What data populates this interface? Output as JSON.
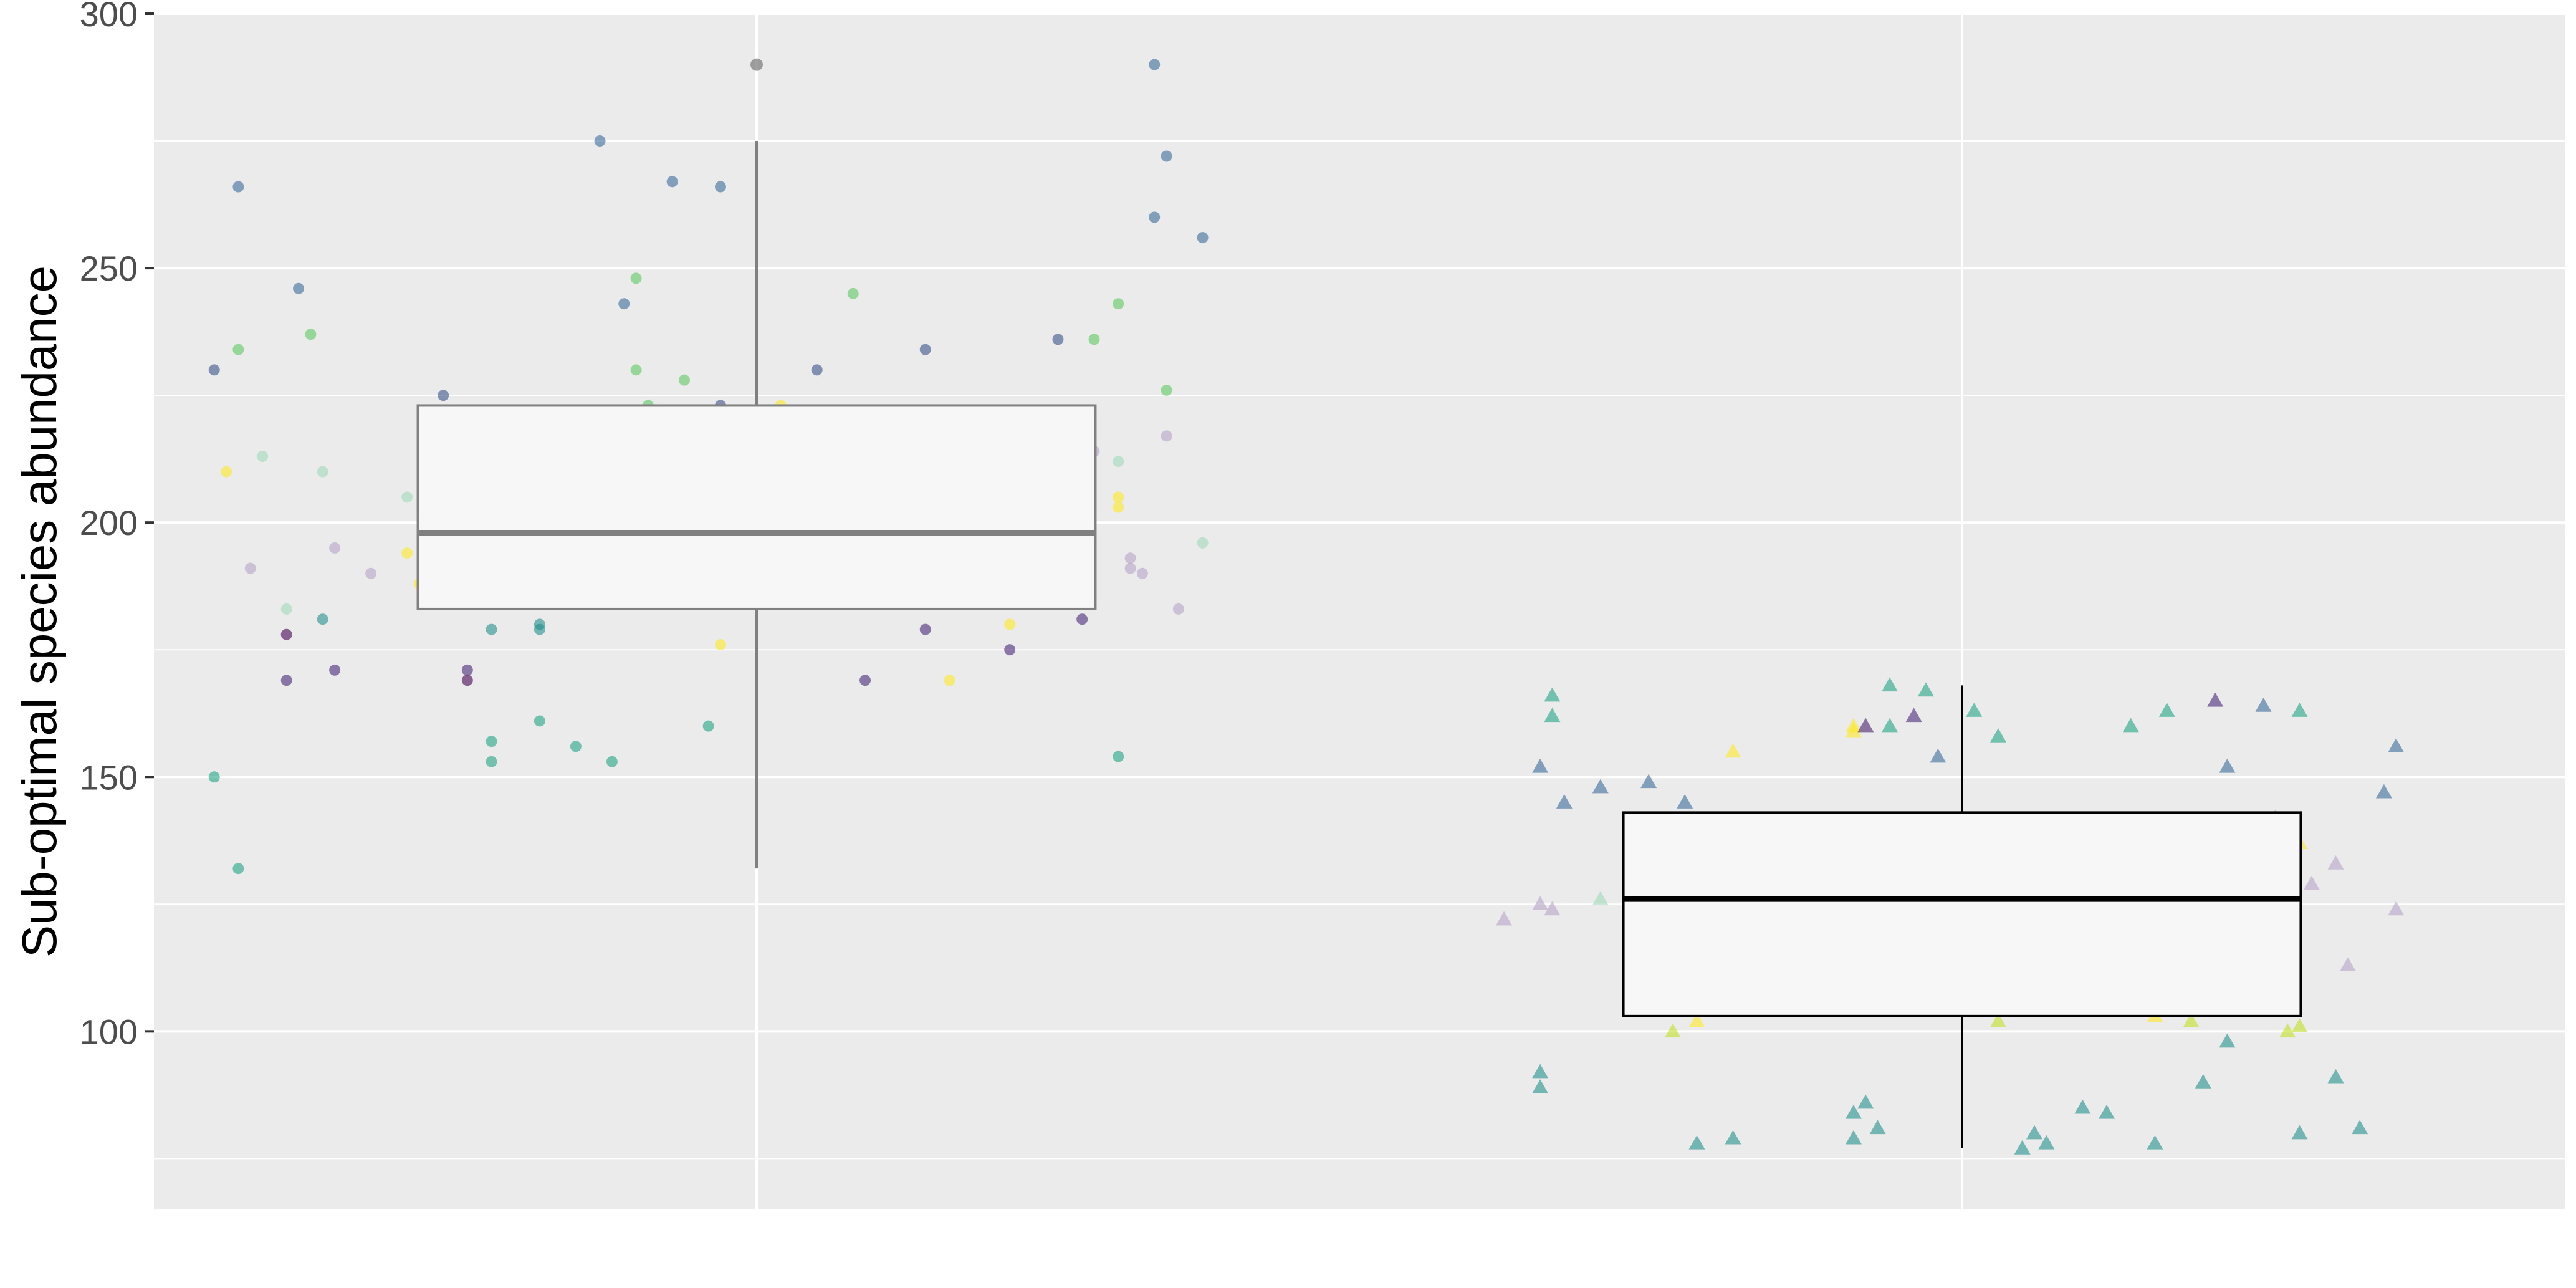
{
  "chart_data": {
    "type": "box",
    "title": "",
    "xlabel": "",
    "ylabel": "Sub-optimal species abundance",
    "ylim": [
      65,
      300
    ],
    "yticks": [
      100,
      150,
      200,
      250,
      300
    ],
    "grid": true,
    "legend": "none",
    "panel_color": "#ebebeb",
    "grid_color": "#ffffff",
    "groups": [
      {
        "id": "group-1",
        "shape": "circle",
        "box": {
          "q1": 183,
          "median": 198,
          "q3": 223,
          "whisker_low": 132,
          "whisker_high": 275
        },
        "outliers": [
          290
        ],
        "box_line_color": "#808080",
        "points": [
          [
            -0.45,
            150,
            "#21a585"
          ],
          [
            -0.43,
            132,
            "#21a585"
          ],
          [
            -0.43,
            266,
            "#3b6b9b"
          ],
          [
            -0.38,
            246,
            "#3b6b9b"
          ],
          [
            -0.37,
            237,
            "#5ec962"
          ],
          [
            -0.45,
            230,
            "#3b528b"
          ],
          [
            -0.43,
            234,
            "#5ec962"
          ],
          [
            -0.44,
            210,
            "#fde725"
          ],
          [
            -0.41,
            213,
            "#a0dab9"
          ],
          [
            -0.36,
            210,
            "#a0dab9"
          ],
          [
            -0.42,
            191,
            "#b8a3c9"
          ],
          [
            -0.35,
            195,
            "#b8a3c9"
          ],
          [
            -0.39,
            183,
            "#a0dab9"
          ],
          [
            -0.36,
            181,
            "#21918c"
          ],
          [
            -0.39,
            178,
            "#440154"
          ],
          [
            -0.39,
            169,
            "#482878"
          ],
          [
            -0.35,
            171,
            "#482878"
          ],
          [
            -0.29,
            205,
            "#a0dab9"
          ],
          [
            -0.25,
            203,
            "#a0dab9"
          ],
          [
            -0.32,
            190,
            "#b8a3c9"
          ],
          [
            -0.27,
            186,
            "#b8a3c9"
          ],
          [
            -0.29,
            194,
            "#fde725"
          ],
          [
            -0.28,
            188,
            "#fde725"
          ],
          [
            -0.24,
            201,
            "#b8a3c9"
          ],
          [
            -0.26,
            198,
            "#b8a3c9"
          ],
          [
            -0.22,
            179,
            "#21918c"
          ],
          [
            -0.18,
            179,
            "#21918c"
          ],
          [
            -0.18,
            180,
            "#21918c"
          ],
          [
            -0.24,
            169,
            "#440154"
          ],
          [
            -0.24,
            171,
            "#482878"
          ],
          [
            -0.25,
            184,
            "#b8a3c9"
          ],
          [
            -0.26,
            188,
            "#fde725"
          ],
          [
            -0.18,
            161,
            "#21a585"
          ],
          [
            -0.22,
            157,
            "#21a585"
          ],
          [
            -0.22,
            153,
            "#21a585"
          ],
          [
            -0.15,
            156,
            "#21a585"
          ],
          [
            -0.12,
            153,
            "#21a585"
          ],
          [
            -0.26,
            225,
            "#3b528b"
          ],
          [
            -0.11,
            243,
            "#3b6b9b"
          ],
          [
            -0.13,
            275,
            "#3b6b9b"
          ],
          [
            -0.07,
            267,
            "#3b6b9b"
          ],
          [
            -0.03,
            266,
            "#3b6b9b"
          ],
          [
            -0.1,
            248,
            "#5ec962"
          ],
          [
            -0.1,
            230,
            "#5ec962"
          ],
          [
            -0.09,
            223,
            "#5ec962"
          ],
          [
            -0.06,
            228,
            "#5ec962"
          ],
          [
            -0.16,
            197,
            "#b8a3c9"
          ],
          [
            -0.14,
            199,
            "#a0dab9"
          ],
          [
            -0.08,
            199,
            "#b8a3c9"
          ],
          [
            -0.13,
            217,
            "#fde725"
          ],
          [
            -0.11,
            222,
            "#fde725"
          ],
          [
            -0.09,
            203,
            "#fde725"
          ],
          [
            -0.02,
            207,
            "#fde725"
          ],
          [
            0.0,
            209,
            "#fde725"
          ],
          [
            -0.04,
            205,
            "#a0dab9"
          ],
          [
            -0.03,
            223,
            "#3b528b"
          ],
          [
            0.02,
            223,
            "#fde725"
          ],
          [
            0.0,
            190,
            "#a0dab9"
          ],
          [
            0.02,
            192,
            "#a0dab9"
          ],
          [
            0.03,
            193,
            "#a0dab9"
          ],
          [
            -0.03,
            176,
            "#fde725"
          ],
          [
            -0.04,
            160,
            "#21a585"
          ],
          [
            0.05,
            230,
            "#3b528b"
          ],
          [
            0.08,
            245,
            "#5ec962"
          ],
          [
            0.14,
            234,
            "#3b528b"
          ],
          [
            0.09,
            169,
            "#482878"
          ],
          [
            0.15,
            197,
            "#fde725"
          ],
          [
            0.15,
            191,
            "#b8a3c9"
          ],
          [
            0.16,
            191,
            "#fde725"
          ],
          [
            0.15,
            187,
            "#b8a3c9"
          ],
          [
            0.19,
            214,
            "#b8a3c9"
          ],
          [
            0.22,
            192,
            "#b8a3c9"
          ],
          [
            0.14,
            179,
            "#482878"
          ],
          [
            0.16,
            169,
            "#fde725"
          ],
          [
            0.21,
            180,
            "#fde725"
          ],
          [
            0.21,
            175,
            "#482878"
          ],
          [
            0.25,
            236,
            "#3b528b"
          ],
          [
            0.28,
            236,
            "#5ec962"
          ],
          [
            0.3,
            243,
            "#5ec962"
          ],
          [
            0.26,
            222,
            "#fde725"
          ],
          [
            0.28,
            214,
            "#b8a3c9"
          ],
          [
            0.3,
            205,
            "#fde725"
          ],
          [
            0.3,
            203,
            "#fde725"
          ],
          [
            0.3,
            212,
            "#a0dab9"
          ],
          [
            0.34,
            226,
            "#5ec962"
          ],
          [
            0.34,
            217,
            "#b8a3c9"
          ],
          [
            0.31,
            193,
            "#b8a3c9"
          ],
          [
            0.31,
            191,
            "#b8a3c9"
          ],
          [
            0.32,
            190,
            "#b8a3c9"
          ],
          [
            0.37,
            196,
            "#a0dab9"
          ],
          [
            0.35,
            183,
            "#b8a3c9"
          ],
          [
            0.27,
            181,
            "#482878"
          ],
          [
            0.3,
            154,
            "#21a585"
          ],
          [
            0.33,
            290,
            "#3b6b9b"
          ],
          [
            0.34,
            272,
            "#3b6b9b"
          ],
          [
            0.33,
            260,
            "#3b6b9b"
          ],
          [
            0.37,
            256,
            "#3b6b9b"
          ]
        ]
      },
      {
        "id": "group-2",
        "shape": "triangle",
        "box": {
          "q1": 103,
          "median": 126,
          "q3": 143,
          "whisker_low": 77,
          "whisker_high": 168
        },
        "outliers": [],
        "box_line_color": "#000000",
        "points": [
          [
            -0.34,
            166,
            "#21a585"
          ],
          [
            -0.34,
            162,
            "#21a585"
          ],
          [
            -0.35,
            152,
            "#3b6b9b"
          ],
          [
            -0.33,
            145,
            "#3b6b9b"
          ],
          [
            -0.3,
            148,
            "#3b6b9b"
          ],
          [
            -0.26,
            149,
            "#3b6b9b"
          ],
          [
            -0.23,
            145,
            "#3b6b9b"
          ],
          [
            -0.38,
            122,
            "#b8a3c9"
          ],
          [
            -0.35,
            125,
            "#b8a3c9"
          ],
          [
            -0.34,
            124,
            "#b8a3c9"
          ],
          [
            -0.3,
            126,
            "#a0dab9"
          ],
          [
            -0.27,
            123,
            "#b8a3c9"
          ],
          [
            -0.24,
            122,
            "#a0dab9"
          ],
          [
            -0.26,
            141,
            "#b8a3c9"
          ],
          [
            -0.23,
            140,
            "#b8a3c9"
          ],
          [
            -0.19,
            155,
            "#fde725"
          ],
          [
            -0.24,
            100,
            "#c2df23"
          ],
          [
            -0.22,
            102,
            "#fde725"
          ],
          [
            -0.19,
            105,
            "#fde725"
          ],
          [
            -0.15,
            106,
            "#a0dab9"
          ],
          [
            -0.35,
            92,
            "#21918c"
          ],
          [
            -0.35,
            89,
            "#21918c"
          ],
          [
            -0.22,
            78,
            "#21918c"
          ],
          [
            -0.19,
            79,
            "#21918c"
          ],
          [
            -0.08,
            86,
            "#21918c"
          ],
          [
            -0.09,
            84,
            "#21918c"
          ],
          [
            -0.07,
            81,
            "#21918c"
          ],
          [
            -0.09,
            79,
            "#21918c"
          ],
          [
            -0.1,
            139,
            "#b8a3c9"
          ],
          [
            -0.1,
            126,
            "#a0dab9"
          ],
          [
            -0.06,
            168,
            "#21a585"
          ],
          [
            -0.03,
            167,
            "#21a585"
          ],
          [
            -0.09,
            160,
            "#fde725"
          ],
          [
            -0.09,
            159,
            "#fde725"
          ],
          [
            -0.08,
            160,
            "#481f70"
          ],
          [
            -0.06,
            160,
            "#21a585"
          ],
          [
            -0.04,
            162,
            "#482878"
          ],
          [
            -0.02,
            154,
            "#3b6b9b"
          ],
          [
            0.01,
            163,
            "#21a585"
          ],
          [
            0.03,
            158,
            "#21a585"
          ],
          [
            -0.01,
            135,
            "#b8a3c9"
          ],
          [
            0.01,
            132,
            "#b8a3c9"
          ],
          [
            0.04,
            132,
            "#b8a3c9"
          ],
          [
            0.05,
            135,
            "#b8a3c9"
          ],
          [
            0.06,
            130,
            "#b8a3c9"
          ],
          [
            0.08,
            133,
            "#b8a3c9"
          ],
          [
            0.02,
            127,
            "#fde725"
          ],
          [
            0.03,
            125,
            "#a0dab9"
          ],
          [
            0.05,
            126,
            "#b8a3c9"
          ],
          [
            -0.02,
            121,
            "#a0dab9"
          ],
          [
            0.0,
            122,
            "#a0dab9"
          ],
          [
            0.02,
            122,
            "#a0dab9"
          ],
          [
            0.09,
            127,
            "#b8a3c9"
          ],
          [
            0.11,
            128,
            "#b8a3c9"
          ],
          [
            0.09,
            121,
            "#a0dab9"
          ],
          [
            0.03,
            102,
            "#c2df23"
          ],
          [
            0.06,
            80,
            "#21918c"
          ],
          [
            0.07,
            78,
            "#21918c"
          ],
          [
            0.05,
            77,
            "#21918c"
          ],
          [
            0.1,
            85,
            "#21918c"
          ],
          [
            0.12,
            84,
            "#21918c"
          ],
          [
            0.14,
            160,
            "#21a585"
          ],
          [
            0.17,
            163,
            "#21a585"
          ],
          [
            0.21,
            165,
            "#482878"
          ],
          [
            0.25,
            164,
            "#3b6b9b"
          ],
          [
            0.28,
            163,
            "#21a585"
          ],
          [
            0.22,
            152,
            "#3b6b9b"
          ],
          [
            0.15,
            125,
            "#b8a3c9"
          ],
          [
            0.16,
            122,
            "#a0dab9"
          ],
          [
            0.2,
            128,
            "#b8a3c9"
          ],
          [
            0.22,
            132,
            "#b8a3c9"
          ],
          [
            0.24,
            122,
            "#b8a3c9"
          ],
          [
            0.26,
            125,
            "#a0dab9"
          ],
          [
            0.27,
            139,
            "#fde725"
          ],
          [
            0.28,
            137,
            "#fde725"
          ],
          [
            0.26,
            142,
            "#b8a3c9"
          ],
          [
            0.29,
            129,
            "#b8a3c9"
          ],
          [
            0.31,
            133,
            "#b8a3c9"
          ],
          [
            0.32,
            113,
            "#b8a3c9"
          ],
          [
            0.36,
            156,
            "#3b6b9b"
          ],
          [
            0.35,
            147,
            "#3b6b9b"
          ],
          [
            0.36,
            124,
            "#b8a3c9"
          ],
          [
            0.16,
            103,
            "#fde725"
          ],
          [
            0.19,
            102,
            "#c2df23"
          ],
          [
            0.27,
            100,
            "#c2df23"
          ],
          [
            0.28,
            101,
            "#c2df23"
          ],
          [
            0.22,
            98,
            "#21918c"
          ],
          [
            0.2,
            90,
            "#21918c"
          ],
          [
            0.31,
            91,
            "#21918c"
          ],
          [
            0.28,
            80,
            "#21918c"
          ],
          [
            0.33,
            81,
            "#21918c"
          ],
          [
            0.16,
            78,
            "#21918c"
          ]
        ]
      }
    ]
  }
}
